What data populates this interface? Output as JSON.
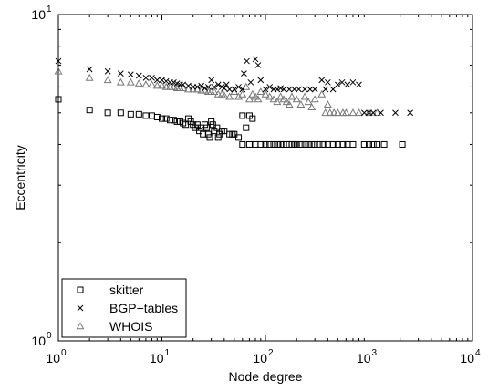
{
  "chart_data": {
    "type": "scatter",
    "xlabel": "Node degree",
    "ylabel": "Eccentricity",
    "xscale": "log",
    "yscale": "log",
    "xlim": [
      1,
      10000
    ],
    "ylim": [
      1,
      10
    ],
    "grid": false,
    "legend_position": "bottom-left",
    "x_ticks": [
      {
        "value": 1,
        "base": "10",
        "exp": "0"
      },
      {
        "value": 10,
        "base": "10",
        "exp": "1"
      },
      {
        "value": 100,
        "base": "10",
        "exp": "2"
      },
      {
        "value": 1000,
        "base": "10",
        "exp": "3"
      },
      {
        "value": 10000,
        "base": "10",
        "exp": "4"
      }
    ],
    "y_ticks": [
      {
        "value": 1,
        "base": "10",
        "exp": "0"
      },
      {
        "value": 10,
        "base": "10",
        "exp": "1"
      }
    ],
    "series": [
      {
        "name": "skitter",
        "marker": "square",
        "color": "#000000",
        "points": [
          [
            1,
            5.5
          ],
          [
            2,
            5.1
          ],
          [
            3,
            5.0
          ],
          [
            4,
            5.0
          ],
          [
            5,
            4.95
          ],
          [
            6,
            4.95
          ],
          [
            7,
            4.9
          ],
          [
            8,
            4.9
          ],
          [
            9,
            4.85
          ],
          [
            10,
            4.8
          ],
          [
            11,
            4.8
          ],
          [
            12,
            4.75
          ],
          [
            13,
            4.75
          ],
          [
            14,
            4.7
          ],
          [
            15,
            4.7
          ],
          [
            16,
            4.65
          ],
          [
            17,
            4.6
          ],
          [
            18,
            4.8
          ],
          [
            19,
            4.7
          ],
          [
            20,
            4.6
          ],
          [
            21,
            4.5
          ],
          [
            22,
            4.6
          ],
          [
            23,
            4.4
          ],
          [
            24,
            4.5
          ],
          [
            25,
            4.3
          ],
          [
            26,
            4.6
          ],
          [
            27,
            4.5
          ],
          [
            28,
            4.3
          ],
          [
            29,
            4.2
          ],
          [
            30,
            4.7
          ],
          [
            31,
            4.6
          ],
          [
            32,
            4.4
          ],
          [
            34,
            4.5
          ],
          [
            35,
            4.2
          ],
          [
            36,
            4.3
          ],
          [
            38,
            4.4
          ],
          [
            40,
            4.4
          ],
          [
            45,
            4.3
          ],
          [
            48,
            4.3
          ],
          [
            50,
            4.3
          ],
          [
            55,
            4.2
          ],
          [
            60,
            4.9
          ],
          [
            65,
            4.5
          ],
          [
            70,
            4.9
          ],
          [
            75,
            4.8
          ],
          [
            60,
            4.0
          ],
          [
            70,
            4.0
          ],
          [
            80,
            4.0
          ],
          [
            90,
            4.0
          ],
          [
            100,
            4.0
          ],
          [
            110,
            4.0
          ],
          [
            120,
            4.0
          ],
          [
            130,
            4.0
          ],
          [
            140,
            4.0
          ],
          [
            150,
            4.0
          ],
          [
            160,
            4.0
          ],
          [
            170,
            4.0
          ],
          [
            180,
            4.0
          ],
          [
            190,
            4.0
          ],
          [
            200,
            4.0
          ],
          [
            220,
            4.0
          ],
          [
            240,
            4.0
          ],
          [
            260,
            4.0
          ],
          [
            280,
            4.0
          ],
          [
            300,
            4.0
          ],
          [
            330,
            4.0
          ],
          [
            360,
            4.0
          ],
          [
            400,
            4.0
          ],
          [
            450,
            4.0
          ],
          [
            500,
            4.0
          ],
          [
            560,
            4.0
          ],
          [
            620,
            4.0
          ],
          [
            700,
            4.0
          ],
          [
            900,
            4.0
          ],
          [
            1000,
            4.0
          ],
          [
            1100,
            4.0
          ],
          [
            1200,
            4.0
          ],
          [
            1400,
            4.0
          ],
          [
            2100,
            4.0
          ]
        ]
      },
      {
        "name": "BGP−tables",
        "marker": "cross",
        "color": "#000000",
        "points": [
          [
            1,
            7.2
          ],
          [
            2,
            6.8
          ],
          [
            3,
            6.7
          ],
          [
            4,
            6.6
          ],
          [
            5,
            6.55
          ],
          [
            6,
            6.5
          ],
          [
            7,
            6.4
          ],
          [
            8,
            6.4
          ],
          [
            9,
            6.3
          ],
          [
            10,
            6.3
          ],
          [
            11,
            6.25
          ],
          [
            12,
            6.2
          ],
          [
            13,
            6.2
          ],
          [
            14,
            6.15
          ],
          [
            15,
            6.1
          ],
          [
            16,
            6.1
          ],
          [
            18,
            6.05
          ],
          [
            20,
            6.0
          ],
          [
            22,
            6.0
          ],
          [
            24,
            6.05
          ],
          [
            26,
            5.95
          ],
          [
            28,
            6.0
          ],
          [
            30,
            6.3
          ],
          [
            32,
            6.0
          ],
          [
            35,
            6.1
          ],
          [
            38,
            6.0
          ],
          [
            40,
            5.95
          ],
          [
            42,
            6.1
          ],
          [
            45,
            5.9
          ],
          [
            50,
            5.9
          ],
          [
            55,
            6.0
          ],
          [
            60,
            5.9
          ],
          [
            62,
            6.6
          ],
          [
            66,
            7.2
          ],
          [
            72,
            6.2
          ],
          [
            80,
            7.3
          ],
          [
            85,
            7.0
          ],
          [
            90,
            6.3
          ],
          [
            100,
            5.9
          ],
          [
            110,
            6.0
          ],
          [
            120,
            5.9
          ],
          [
            130,
            5.9
          ],
          [
            140,
            5.95
          ],
          [
            150,
            5.9
          ],
          [
            170,
            5.9
          ],
          [
            190,
            5.9
          ],
          [
            210,
            5.9
          ],
          [
            240,
            5.9
          ],
          [
            270,
            5.9
          ],
          [
            300,
            5.9
          ],
          [
            350,
            6.3
          ],
          [
            380,
            5.9
          ],
          [
            400,
            6.2
          ],
          [
            450,
            5.9
          ],
          [
            500,
            6.1
          ],
          [
            550,
            6.2
          ],
          [
            620,
            6.1
          ],
          [
            700,
            6.2
          ],
          [
            800,
            6.1
          ],
          [
            900,
            5.0
          ],
          [
            1000,
            5.0
          ],
          [
            1100,
            5.0
          ],
          [
            1300,
            5.0
          ],
          [
            1800,
            5.0
          ],
          [
            2500,
            5.0
          ]
        ]
      },
      {
        "name": "WHOIS",
        "marker": "triangle",
        "color": "#777777",
        "points": [
          [
            1,
            6.7
          ],
          [
            2,
            6.4
          ],
          [
            3,
            6.3
          ],
          [
            4,
            6.2
          ],
          [
            5,
            6.2
          ],
          [
            6,
            6.15
          ],
          [
            7,
            6.1
          ],
          [
            8,
            6.1
          ],
          [
            9,
            6.05
          ],
          [
            10,
            6.05
          ],
          [
            11,
            6.0
          ],
          [
            12,
            6.0
          ],
          [
            13,
            6.0
          ],
          [
            14,
            5.95
          ],
          [
            15,
            5.95
          ],
          [
            16,
            5.95
          ],
          [
            18,
            5.9
          ],
          [
            20,
            5.9
          ],
          [
            22,
            5.9
          ],
          [
            24,
            5.85
          ],
          [
            26,
            5.85
          ],
          [
            28,
            5.8
          ],
          [
            30,
            5.8
          ],
          [
            32,
            5.8
          ],
          [
            35,
            5.7
          ],
          [
            38,
            5.7
          ],
          [
            40,
            5.65
          ],
          [
            45,
            5.6
          ],
          [
            50,
            5.8
          ],
          [
            55,
            5.6
          ],
          [
            60,
            5.7
          ],
          [
            65,
            6.0
          ],
          [
            70,
            5.5
          ],
          [
            75,
            5.7
          ],
          [
            80,
            5.6
          ],
          [
            85,
            5.5
          ],
          [
            90,
            5.8
          ],
          [
            100,
            5.7
          ],
          [
            110,
            5.6
          ],
          [
            120,
            5.5
          ],
          [
            130,
            5.4
          ],
          [
            140,
            5.6
          ],
          [
            150,
            5.5
          ],
          [
            160,
            5.4
          ],
          [
            170,
            5.3
          ],
          [
            180,
            5.6
          ],
          [
            200,
            5.5
          ],
          [
            220,
            5.3
          ],
          [
            240,
            5.6
          ],
          [
            260,
            5.4
          ],
          [
            280,
            5.2
          ],
          [
            300,
            5.5
          ],
          [
            350,
            5.7
          ],
          [
            380,
            5.0
          ],
          [
            400,
            5.3
          ],
          [
            420,
            5.0
          ],
          [
            460,
            5.0
          ],
          [
            500,
            5.0
          ],
          [
            560,
            5.0
          ],
          [
            600,
            5.0
          ],
          [
            700,
            5.0
          ],
          [
            800,
            5.0
          ],
          [
            1000,
            5.0
          ],
          [
            1200,
            5.0
          ]
        ]
      }
    ]
  }
}
